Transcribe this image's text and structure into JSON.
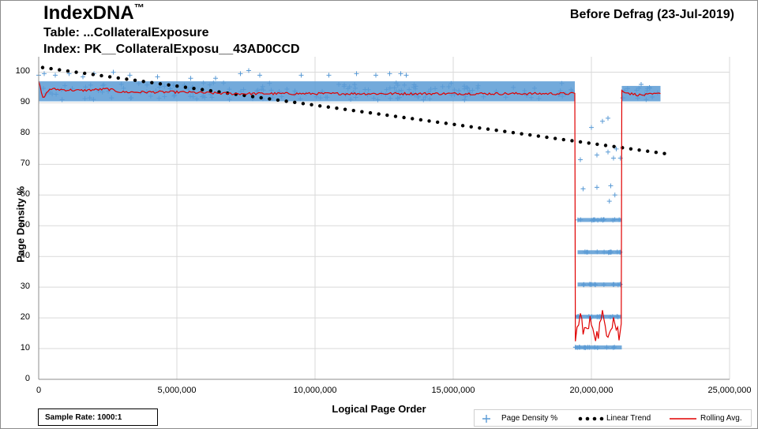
{
  "header": {
    "title": "IndexDNA",
    "tm": "™",
    "table": "Table: ...CollateralExposure",
    "index": "Index: PK__CollateralExposu__43AD0CCD",
    "status": "Before Defrag (23-Jul-2019)"
  },
  "footer": {
    "sample_rate": "Sample Rate: 1000:1"
  },
  "colors": {
    "density": "#5b9bd5",
    "trend": "#000000",
    "rolling": "#e00000",
    "grid": "#d9d9d9"
  },
  "chart_data": {
    "type": "scatter",
    "xlabel": "Logical Page Order",
    "ylabel": "Page Density %",
    "xlim": [
      0,
      25000000
    ],
    "ylim": [
      0,
      105
    ],
    "xticks": [
      0,
      5000000,
      10000000,
      15000000,
      20000000,
      25000000
    ],
    "xtick_labels": [
      "0",
      "5,000,000",
      "10,000,000",
      "15,000,000",
      "20,000,000",
      "25,000,000"
    ],
    "yticks": [
      0,
      10,
      20,
      30,
      40,
      50,
      60,
      70,
      80,
      90,
      100
    ],
    "ytick_labels": [
      "0",
      "10",
      "20",
      "30",
      "40",
      "50",
      "60",
      "70",
      "80",
      "90",
      "100"
    ],
    "grid": true,
    "legend_position": "bottom-right",
    "series": [
      {
        "name": "Page Density %",
        "style": "plus-markers",
        "bands": [
          {
            "x": [
              0,
              19400000
            ],
            "y": [
              91,
              96.5
            ]
          },
          {
            "x": [
              21100000,
              22500000
            ],
            "y": [
              91,
              95
            ]
          },
          {
            "x": [
              19400000,
              21100000
            ],
            "y": [
              10.5,
              10.5
            ]
          },
          {
            "x": [
              19400000,
              21100000
            ],
            "y": [
              20.5,
              20.5
            ]
          },
          {
            "x": [
              19500000,
              21100000
            ],
            "y": [
              31,
              31
            ]
          },
          {
            "x": [
              19500000,
              21100000
            ],
            "y": [
              41.5,
              41.5
            ]
          },
          {
            "x": [
              19500000,
              21100000
            ],
            "y": [
              52,
              52
            ]
          }
        ],
        "scattered_points": [
          [
            0,
            99
          ],
          [
            200000,
            99.5
          ],
          [
            600000,
            99
          ],
          [
            1100000,
            99.5
          ],
          [
            1600000,
            98.5
          ],
          [
            2000000,
            99.5
          ],
          [
            2700000,
            100
          ],
          [
            3300000,
            99
          ],
          [
            4300000,
            98.5
          ],
          [
            5500000,
            98
          ],
          [
            6400000,
            98
          ],
          [
            7300000,
            99.5
          ],
          [
            7600000,
            100.5
          ],
          [
            8000000,
            99
          ],
          [
            9500000,
            99
          ],
          [
            10500000,
            99
          ],
          [
            11500000,
            99.5
          ],
          [
            12200000,
            99
          ],
          [
            12700000,
            99.5
          ],
          [
            13100000,
            99.5
          ],
          [
            13300000,
            99
          ],
          [
            19700000,
            62
          ],
          [
            20200000,
            62.5
          ],
          [
            20700000,
            63
          ],
          [
            20650000,
            58
          ],
          [
            20850000,
            60
          ],
          [
            20000000,
            82
          ],
          [
            20600000,
            85
          ],
          [
            20400000,
            84
          ],
          [
            20200000,
            73
          ],
          [
            20600000,
            74
          ],
          [
            20800000,
            72
          ],
          [
            21050000,
            72
          ],
          [
            19600000,
            71.5
          ],
          [
            20900000,
            75
          ],
          [
            21200000,
            94
          ],
          [
            21800000,
            96
          ],
          [
            22100000,
            95
          ]
        ]
      },
      {
        "name": "Linear Trend",
        "style": "dotted",
        "start": [
          0,
          101.5
        ],
        "end": [
          22500000,
          73.5
        ]
      },
      {
        "name": "Rolling Avg.",
        "style": "line",
        "points": [
          [
            0,
            97
          ],
          [
            150000,
            91.5
          ],
          [
            400000,
            94.5
          ],
          [
            1500000,
            94
          ],
          [
            2500000,
            94.5
          ],
          [
            3000000,
            93.5
          ],
          [
            5000000,
            93.5
          ],
          [
            7000000,
            93
          ],
          [
            9000000,
            93
          ],
          [
            12000000,
            93
          ],
          [
            15000000,
            93
          ],
          [
            17500000,
            93
          ],
          [
            19400000,
            93
          ],
          [
            19420000,
            14
          ],
          [
            19600000,
            20
          ],
          [
            19800000,
            15
          ],
          [
            20000000,
            19
          ],
          [
            20200000,
            14
          ],
          [
            20400000,
            20
          ],
          [
            20600000,
            16
          ],
          [
            20800000,
            20
          ],
          [
            21000000,
            14
          ],
          [
            21080000,
            18
          ],
          [
            21100000,
            94
          ],
          [
            21400000,
            93
          ],
          [
            21800000,
            92.5
          ],
          [
            22500000,
            93
          ]
        ]
      }
    ]
  }
}
